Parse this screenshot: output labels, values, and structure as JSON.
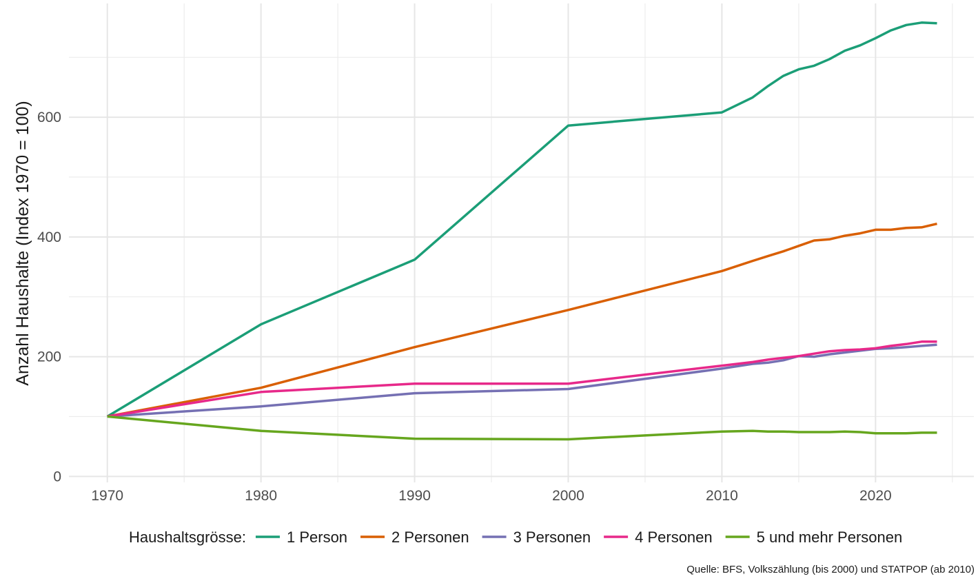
{
  "chart_data": {
    "type": "line",
    "ylabel": "Anzahl Haushalte (Index 1970 = 100)",
    "xlabel": "",
    "x_ticks": [
      1970,
      1980,
      1990,
      2000,
      2010,
      2020
    ],
    "y_ticks": [
      0,
      200,
      400,
      600
    ],
    "xlim": [
      1967.5,
      2026.4
    ],
    "ylim": [
      -10,
      790
    ],
    "grid": true,
    "legend": {
      "title": "Haushaltsgrösse:",
      "position": "bottom"
    },
    "caption": "Quelle: BFS, Volkszählung (bis 2000) und STATPOP (ab 2010)",
    "series": [
      {
        "name": "1 Person",
        "color": "#1b9e77",
        "x": [
          1970,
          1980,
          1990,
          2000,
          2010,
          2012,
          2013,
          2014,
          2015,
          2016,
          2017,
          2018,
          2019,
          2020,
          2021,
          2022,
          2023,
          2024
        ],
        "values": [
          100,
          254,
          362,
          586,
          608,
          633,
          652,
          669,
          680,
          686,
          697,
          711,
          720,
          732,
          745,
          754,
          758,
          757
        ]
      },
      {
        "name": "2 Personen",
        "color": "#d95f02",
        "x": [
          1970,
          1980,
          1990,
          2000,
          2010,
          2012,
          2013,
          2014,
          2015,
          2016,
          2017,
          2018,
          2019,
          2020,
          2021,
          2022,
          2023,
          2024
        ],
        "values": [
          100,
          148,
          216,
          278,
          343,
          360,
          368,
          376,
          385,
          394,
          396,
          402,
          406,
          412,
          412,
          415,
          416,
          422
        ]
      },
      {
        "name": "3 Personen",
        "color": "#7570b3",
        "x": [
          1970,
          1980,
          1990,
          2000,
          2010,
          2012,
          2013,
          2014,
          2015,
          2016,
          2017,
          2018,
          2019,
          2020,
          2021,
          2022,
          2023,
          2024
        ],
        "values": [
          100,
          117,
          139,
          146,
          180,
          188,
          190,
          194,
          201,
          200,
          204,
          207,
          210,
          213,
          214,
          216,
          218,
          220
        ]
      },
      {
        "name": "4 Personen",
        "color": "#e7298a",
        "x": [
          1970,
          1980,
          1990,
          2000,
          2010,
          2012,
          2013,
          2014,
          2015,
          2016,
          2017,
          2018,
          2019,
          2020,
          2021,
          2022,
          2023,
          2024
        ],
        "values": [
          100,
          141,
          155,
          155,
          185,
          191,
          195,
          198,
          201,
          205,
          209,
          211,
          212,
          214,
          218,
          221,
          225,
          225
        ]
      },
      {
        "name": "5 und mehr Personen",
        "color": "#66a61e",
        "x": [
          1970,
          1980,
          1990,
          2000,
          2010,
          2012,
          2013,
          2014,
          2015,
          2016,
          2017,
          2018,
          2019,
          2020,
          2021,
          2022,
          2023,
          2024
        ],
        "values": [
          100,
          76,
          63,
          62,
          75,
          76,
          75,
          75,
          74,
          74,
          74,
          75,
          74,
          72,
          72,
          72,
          73,
          73
        ]
      }
    ]
  }
}
